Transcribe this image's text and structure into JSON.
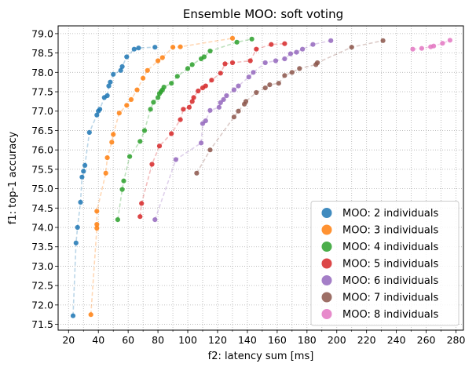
{
  "chart_data": {
    "type": "scatter",
    "title": "Ensemble MOO: soft voting",
    "xlabel": "f2: latency sum [ms]",
    "ylabel": "f1: top-1 accuracy",
    "xlim": [
      13,
      285
    ],
    "ylim": [
      71.35,
      79.2
    ],
    "xticks": [
      20,
      40,
      60,
      80,
      100,
      120,
      140,
      160,
      180,
      200,
      220,
      240,
      260,
      280
    ],
    "xminor_step": 10,
    "yticks": [
      71.5,
      72.0,
      72.5,
      73.0,
      73.5,
      74.0,
      74.5,
      75.0,
      75.5,
      76.0,
      76.5,
      77.0,
      77.5,
      78.0,
      78.5,
      79.0
    ],
    "grid": true,
    "legend_position": "bottom-right",
    "series": [
      {
        "name": "MOO: 2 individuals",
        "color": "#1f77b4",
        "points": [
          [
            23,
            71.72
          ],
          [
            25,
            73.6
          ],
          [
            26,
            74.0
          ],
          [
            28,
            74.65
          ],
          [
            29,
            75.3
          ],
          [
            30,
            75.45
          ],
          [
            31,
            75.6
          ],
          [
            34,
            76.45
          ],
          [
            39,
            76.9
          ],
          [
            40,
            77.0
          ],
          [
            41,
            77.05
          ],
          [
            44,
            77.35
          ],
          [
            46,
            77.4
          ],
          [
            47,
            77.65
          ],
          [
            48,
            77.75
          ],
          [
            50,
            77.95
          ],
          [
            55,
            78.05
          ],
          [
            56,
            78.15
          ],
          [
            59,
            78.4
          ],
          [
            64,
            78.6
          ],
          [
            67,
            78.63
          ],
          [
            78,
            78.65
          ]
        ]
      },
      {
        "name": "MOO: 3 individuals",
        "color": "#ff7f0e",
        "points": [
          [
            35,
            71.75
          ],
          [
            39,
            73.98
          ],
          [
            39,
            74.08
          ],
          [
            39,
            74.42
          ],
          [
            45,
            75.4
          ],
          [
            46,
            75.8
          ],
          [
            49,
            76.2
          ],
          [
            50,
            76.4
          ],
          [
            54,
            76.95
          ],
          [
            59,
            77.15
          ],
          [
            62,
            77.3
          ],
          [
            66,
            77.55
          ],
          [
            70,
            77.85
          ],
          [
            73,
            78.05
          ],
          [
            80,
            78.3
          ],
          [
            83,
            78.38
          ],
          [
            90,
            78.65
          ],
          [
            95,
            78.66
          ],
          [
            130,
            78.88
          ]
        ]
      },
      {
        "name": "MOO: 4 individuals",
        "color": "#2ca02c",
        "points": [
          [
            53,
            74.2
          ],
          [
            56,
            74.98
          ],
          [
            57,
            75.2
          ],
          [
            61,
            75.83
          ],
          [
            68,
            76.22
          ],
          [
            71,
            76.5
          ],
          [
            75,
            77.05
          ],
          [
            77,
            77.23
          ],
          [
            80,
            77.35
          ],
          [
            81,
            77.45
          ],
          [
            82,
            77.5
          ],
          [
            83,
            77.55
          ],
          [
            84,
            77.62
          ],
          [
            89,
            77.72
          ],
          [
            93,
            77.9
          ],
          [
            100,
            78.1
          ],
          [
            103,
            78.2
          ],
          [
            109,
            78.35
          ],
          [
            111,
            78.4
          ],
          [
            115,
            78.55
          ],
          [
            133,
            78.78
          ],
          [
            143,
            78.86
          ]
        ]
      },
      {
        "name": "MOO: 5 individuals",
        "color": "#d62728",
        "points": [
          [
            68,
            74.28
          ],
          [
            69,
            74.62
          ],
          [
            76,
            75.63
          ],
          [
            81,
            76.1
          ],
          [
            89,
            76.42
          ],
          [
            95,
            76.78
          ],
          [
            97,
            77.05
          ],
          [
            101,
            77.1
          ],
          [
            103,
            77.25
          ],
          [
            104,
            77.35
          ],
          [
            107,
            77.52
          ],
          [
            110,
            77.6
          ],
          [
            112,
            77.65
          ],
          [
            116,
            77.8
          ],
          [
            122,
            77.98
          ],
          [
            125,
            78.22
          ],
          [
            130,
            78.25
          ],
          [
            142,
            78.3
          ],
          [
            146,
            78.6
          ],
          [
            156,
            78.72
          ],
          [
            165,
            78.74
          ]
        ]
      },
      {
        "name": "MOO: 6 individuals",
        "color": "#9467bd",
        "points": [
          [
            78,
            74.2
          ],
          [
            92,
            75.75
          ],
          [
            109,
            76.18
          ],
          [
            110,
            76.68
          ],
          [
            112,
            76.75
          ],
          [
            115,
            77.02
          ],
          [
            121,
            77.1
          ],
          [
            122,
            77.22
          ],
          [
            124,
            77.3
          ],
          [
            126,
            77.4
          ],
          [
            131,
            77.55
          ],
          [
            134,
            77.65
          ],
          [
            141,
            77.88
          ],
          [
            144,
            78.0
          ],
          [
            152,
            78.25
          ],
          [
            159,
            78.3
          ],
          [
            165,
            78.35
          ],
          [
            169,
            78.48
          ],
          [
            173,
            78.52
          ],
          [
            177,
            78.6
          ],
          [
            184,
            78.72
          ],
          [
            196,
            78.82
          ]
        ]
      },
      {
        "name": "MOO: 7 individuals",
        "color": "#8c564b",
        "points": [
          [
            106,
            75.4
          ],
          [
            115,
            76.0
          ],
          [
            131,
            76.85
          ],
          [
            134,
            77.0
          ],
          [
            138,
            77.18
          ],
          [
            139,
            77.25
          ],
          [
            146,
            77.48
          ],
          [
            152,
            77.6
          ],
          [
            155,
            77.68
          ],
          [
            161,
            77.72
          ],
          [
            165,
            77.92
          ],
          [
            170,
            78.0
          ],
          [
            175,
            78.1
          ],
          [
            186,
            78.2
          ],
          [
            187,
            78.25
          ],
          [
            210,
            78.65
          ],
          [
            231,
            78.82
          ]
        ]
      },
      {
        "name": "MOO: 8 individuals",
        "color": "#e377c2",
        "points": [
          [
            251,
            78.6
          ],
          [
            257,
            78.62
          ],
          [
            263,
            78.66
          ],
          [
            265,
            78.68
          ],
          [
            271,
            78.75
          ],
          [
            276,
            78.83
          ]
        ]
      }
    ]
  }
}
